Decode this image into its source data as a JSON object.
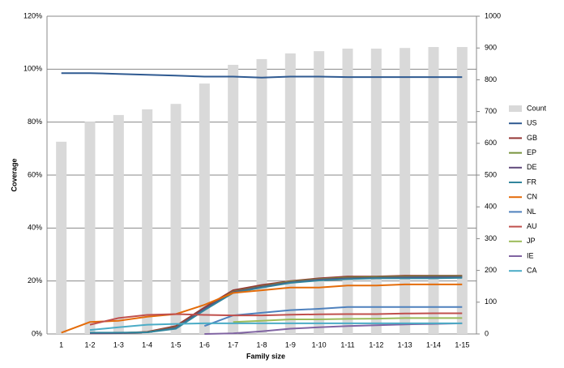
{
  "chart_data": {
    "type": "line",
    "x_label": "Family size",
    "y_label": "Coverage",
    "categories": [
      "1",
      "1-2",
      "1-3",
      "1-4",
      "1-5",
      "1-6",
      "1-7",
      "1-8",
      "1-9",
      "1-10",
      "1-11",
      "1-12",
      "1-13",
      "1-14",
      "1-15"
    ],
    "ylim": [
      0,
      120
    ],
    "yticks": [
      {
        "value": 0,
        "label": "0%"
      },
      {
        "value": 20,
        "label": "20%"
      },
      {
        "value": 40,
        "label": "40%"
      },
      {
        "value": 60,
        "label": "60%"
      },
      {
        "value": 80,
        "label": "80%"
      },
      {
        "value": 100,
        "label": "100%"
      },
      {
        "value": 120,
        "label": "120%"
      }
    ],
    "y2lim": [
      0,
      1000
    ],
    "y2ticks": [
      0,
      100,
      200,
      300,
      400,
      500,
      600,
      700,
      800,
      900,
      1000
    ],
    "grid": true,
    "legend": "right",
    "series": [
      {
        "name": "Count",
        "type": "bar",
        "axis": "y2",
        "color": "#d9d9d9",
        "values": [
          605,
          668,
          689,
          707,
          724,
          788,
          847,
          865,
          883,
          890,
          898,
          898,
          900,
          903,
          903
        ]
      },
      {
        "name": "US",
        "color": "#2f5a91",
        "values": [
          98.5,
          98.5,
          98.2,
          97.9,
          97.6,
          97.2,
          97.2,
          96.8,
          97.2,
          97.2,
          97,
          97,
          97,
          97,
          97
        ]
      },
      {
        "name": "GB",
        "color": "#953735",
        "values": [
          null,
          0.2,
          0.3,
          0.8,
          3,
          10,
          16.5,
          18.5,
          20,
          21,
          21.7,
          21.7,
          22,
          22,
          22
        ]
      },
      {
        "name": "EP",
        "color": "#77933c",
        "values": [
          null,
          0.3,
          0.4,
          0.7,
          2.5,
          9.5,
          16,
          18,
          19.8,
          20.7,
          21.3,
          21.5,
          21.7,
          21.8,
          21.8
        ]
      },
      {
        "name": "DE",
        "color": "#604a7b",
        "values": [
          null,
          0.2,
          0.3,
          0.6,
          2.3,
          9.5,
          15.8,
          17.8,
          19.5,
          20.5,
          21,
          21.2,
          21.4,
          21.5,
          21.5
        ]
      },
      {
        "name": "FR",
        "color": "#31859c",
        "values": [
          null,
          0.5,
          0.5,
          0.6,
          2,
          9,
          15.5,
          17.5,
          19.3,
          20.2,
          20.7,
          21,
          21,
          21,
          21.2
        ]
      },
      {
        "name": "CN",
        "color": "#e46c0a",
        "values": [
          0.5,
          4.5,
          5,
          6.5,
          7.5,
          11,
          15.5,
          16.5,
          17.5,
          17.5,
          18.3,
          18.3,
          18.7,
          18.7,
          18.7
        ]
      },
      {
        "name": "NL",
        "color": "#4f81bd",
        "values": [
          null,
          null,
          null,
          null,
          null,
          3,
          7,
          8,
          9,
          9.5,
          10.2,
          10.2,
          10.2,
          10.2,
          10.2
        ]
      },
      {
        "name": "AU",
        "color": "#c0504d",
        "values": [
          null,
          3.5,
          6,
          7.2,
          7.5,
          7.2,
          7,
          7,
          7.3,
          7.4,
          7.5,
          7.5,
          7.7,
          7.8,
          7.8
        ]
      },
      {
        "name": "JP",
        "color": "#9bbb59",
        "values": [
          null,
          null,
          null,
          null,
          null,
          null,
          4.5,
          5,
          5.5,
          5.5,
          5.7,
          5.8,
          6,
          6,
          6
        ]
      },
      {
        "name": "IE",
        "color": "#8064a2",
        "values": [
          null,
          null,
          null,
          null,
          null,
          0,
          0.2,
          1,
          2,
          2.5,
          3,
          3.3,
          3.6,
          3.8,
          4
        ]
      },
      {
        "name": "CA",
        "color": "#4bacc6",
        "values": [
          null,
          1.5,
          2.5,
          3.5,
          3.8,
          4,
          4,
          4,
          4,
          4,
          4,
          4,
          4,
          4,
          4
        ]
      }
    ]
  }
}
